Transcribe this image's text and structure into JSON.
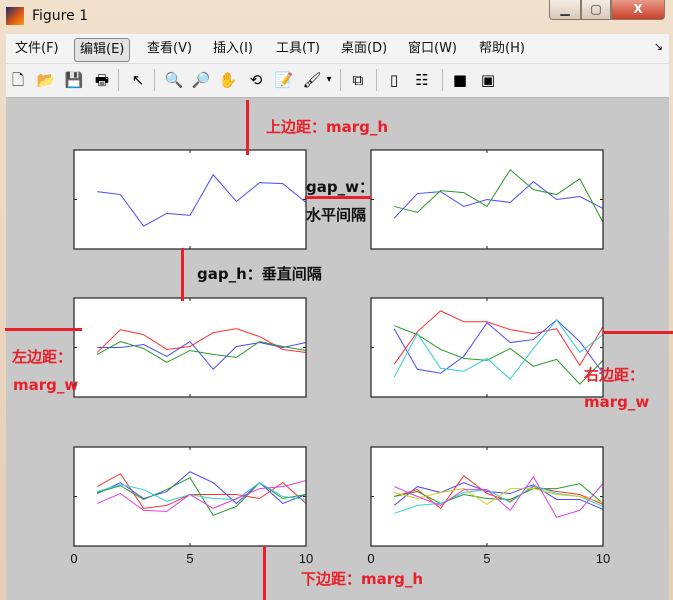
{
  "window": {
    "title": "Figure 1",
    "min": "▁",
    "max": "▢",
    "close": "X"
  },
  "menu": [
    "文件(F)",
    "编辑(E)",
    "查看(V)",
    "插入(I)",
    "工具(T)",
    "桌面(D)",
    "窗口(W)",
    "帮助(H)"
  ],
  "menu_active": 1,
  "menu_corner": "↘",
  "toolbar": [
    {
      "name": "new-figure-icon",
      "glyph": "🗋"
    },
    {
      "name": "open-file-icon",
      "glyph": "📂"
    },
    {
      "name": "save-icon",
      "glyph": "💾"
    },
    {
      "name": "print-icon",
      "glyph": "🖶"
    },
    {
      "name": "edit-plot-arrow-icon",
      "glyph": "↖"
    },
    {
      "name": "zoom-in-icon",
      "glyph": "🔍"
    },
    {
      "name": "zoom-out-icon",
      "glyph": "🔎"
    },
    {
      "name": "pan-hand-icon",
      "glyph": "✋"
    },
    {
      "name": "rotate-3d-icon",
      "glyph": "⟲"
    },
    {
      "name": "data-cursor-icon",
      "glyph": "📝"
    },
    {
      "name": "brush-icon",
      "glyph": "🖌"
    },
    {
      "name": "brush-dropdown-icon",
      "glyph": "▾"
    },
    {
      "name": "link-plot-icon",
      "glyph": "⧉"
    },
    {
      "name": "colorbar-icon",
      "glyph": "▯"
    },
    {
      "name": "legend-icon",
      "glyph": "☷"
    },
    {
      "name": "hide-plot-tools-icon",
      "glyph": "■"
    },
    {
      "name": "show-plot-tools-icon",
      "glyph": "▣"
    }
  ],
  "annotations": {
    "top": "上边距：marg_h",
    "gap_w_1": "gap_w：",
    "gap_w_2": "水平间隔",
    "gap_h": "gap_h：垂直间隔",
    "left_1": "左边距：",
    "left_2": "marg_w",
    "right_1": "右边距：",
    "right_2": "marg_w",
    "bottom": "下边距：marg_h"
  },
  "colors": {
    "blue": "#4a4aff",
    "green": "#2a9a2a",
    "red": "#ff3030",
    "cyan": "#30d0d0",
    "magenta": "#e040e0",
    "yellow": "#d0d020",
    "annotation": "#e8202a"
  },
  "chart_data": [
    {
      "type": "line",
      "xlim": [
        0,
        10
      ],
      "ylim": [
        0,
        1
      ],
      "x": [
        1,
        2,
        3,
        4,
        5,
        6,
        7,
        8,
        9,
        10
      ],
      "series": [
        {
          "color": "blue",
          "values": [
            0.58,
            0.55,
            0.23,
            0.36,
            0.34,
            0.75,
            0.48,
            0.67,
            0.66,
            0.47
          ]
        }
      ]
    },
    {
      "type": "line",
      "xlim": [
        0,
        10
      ],
      "ylim": [
        0,
        1
      ],
      "x": [
        1,
        2,
        3,
        4,
        5,
        6,
        7,
        8,
        9,
        10
      ],
      "series": [
        {
          "color": "blue",
          "values": [
            0.31,
            0.56,
            0.58,
            0.43,
            0.5,
            0.47,
            0.68,
            0.5,
            0.53,
            0.41
          ]
        },
        {
          "color": "green",
          "values": [
            0.43,
            0.37,
            0.59,
            0.57,
            0.43,
            0.8,
            0.6,
            0.55,
            0.71,
            0.27
          ]
        }
      ]
    },
    {
      "type": "line",
      "xlim": [
        0,
        10
      ],
      "ylim": [
        0,
        1
      ],
      "x": [
        1,
        2,
        3,
        4,
        5,
        6,
        7,
        8,
        9,
        10
      ],
      "series": [
        {
          "color": "blue",
          "values": [
            0.5,
            0.5,
            0.53,
            0.41,
            0.56,
            0.28,
            0.51,
            0.55,
            0.5,
            0.55
          ]
        },
        {
          "color": "red",
          "values": [
            0.45,
            0.68,
            0.63,
            0.48,
            0.51,
            0.65,
            0.69,
            0.61,
            0.48,
            0.45
          ]
        },
        {
          "color": "green",
          "values": [
            0.43,
            0.56,
            0.49,
            0.35,
            0.47,
            0.43,
            0.4,
            0.56,
            0.51,
            0.47
          ]
        }
      ]
    },
    {
      "type": "line",
      "xlim": [
        0,
        10
      ],
      "ylim": [
        0,
        1
      ],
      "x": [
        1,
        2,
        3,
        4,
        5,
        6,
        7,
        8,
        9,
        10
      ],
      "series": [
        {
          "color": "blue",
          "values": [
            0.69,
            0.28,
            0.24,
            0.41,
            0.75,
            0.55,
            0.58,
            0.78,
            0.56,
            0.24
          ]
        },
        {
          "color": "red",
          "values": [
            0.33,
            0.66,
            0.87,
            0.76,
            0.76,
            0.68,
            0.64,
            0.69,
            0.32,
            0.71
          ]
        },
        {
          "color": "green",
          "values": [
            0.72,
            0.63,
            0.48,
            0.39,
            0.37,
            0.49,
            0.31,
            0.38,
            0.13,
            0.37
          ]
        },
        {
          "color": "cyan",
          "values": [
            0.2,
            0.64,
            0.29,
            0.26,
            0.39,
            0.18,
            0.49,
            0.78,
            0.45,
            0.63
          ]
        }
      ]
    },
    {
      "type": "line",
      "xlim": [
        0,
        10
      ],
      "ylim": [
        0,
        1
      ],
      "x": [
        1,
        2,
        3,
        4,
        5,
        6,
        7,
        8,
        9,
        10
      ],
      "xticklabels": [
        "0",
        "5",
        "10"
      ],
      "series": [
        {
          "color": "red",
          "values": [
            0.6,
            0.73,
            0.38,
            0.41,
            0.52,
            0.52,
            0.52,
            0.48,
            0.64,
            0.43
          ]
        },
        {
          "color": "blue",
          "values": [
            0.53,
            0.64,
            0.48,
            0.55,
            0.75,
            0.64,
            0.43,
            0.64,
            0.43,
            0.52
          ]
        },
        {
          "color": "green",
          "values": [
            0.54,
            0.61,
            0.47,
            0.57,
            0.69,
            0.31,
            0.4,
            0.64,
            0.48,
            0.52
          ]
        },
        {
          "color": "cyan",
          "values": [
            0.55,
            0.62,
            0.57,
            0.45,
            0.52,
            0.48,
            0.47,
            0.64,
            0.5,
            0.47
          ]
        },
        {
          "color": "magenta",
          "values": [
            0.43,
            0.53,
            0.36,
            0.35,
            0.52,
            0.38,
            0.48,
            0.58,
            0.6,
            0.66
          ]
        }
      ]
    },
    {
      "type": "line",
      "xlim": [
        0,
        10
      ],
      "ylim": [
        0,
        1
      ],
      "x": [
        1,
        2,
        3,
        4,
        5,
        6,
        7,
        8,
        9,
        10
      ],
      "xticklabels": [
        "0",
        "5",
        "10"
      ],
      "series": [
        {
          "color": "blue",
          "values": [
            0.41,
            0.6,
            0.54,
            0.64,
            0.55,
            0.53,
            0.62,
            0.47,
            0.47,
            0.37
          ]
        },
        {
          "color": "red",
          "values": [
            0.5,
            0.57,
            0.38,
            0.71,
            0.53,
            0.45,
            0.6,
            0.55,
            0.52,
            0.42
          ]
        },
        {
          "color": "green",
          "values": [
            0.5,
            0.55,
            0.43,
            0.52,
            0.48,
            0.47,
            0.58,
            0.58,
            0.63,
            0.43
          ]
        },
        {
          "color": "cyan",
          "values": [
            0.33,
            0.41,
            0.43,
            0.54,
            0.57,
            0.44,
            0.61,
            0.53,
            0.5,
            0.4
          ]
        },
        {
          "color": "yellow",
          "values": [
            0.54,
            0.48,
            0.54,
            0.58,
            0.42,
            0.58,
            0.58,
            0.52,
            0.5,
            0.44
          ]
        },
        {
          "color": "magenta",
          "values": [
            0.6,
            0.5,
            0.41,
            0.57,
            0.57,
            0.36,
            0.7,
            0.29,
            0.36,
            0.63
          ]
        }
      ]
    }
  ]
}
